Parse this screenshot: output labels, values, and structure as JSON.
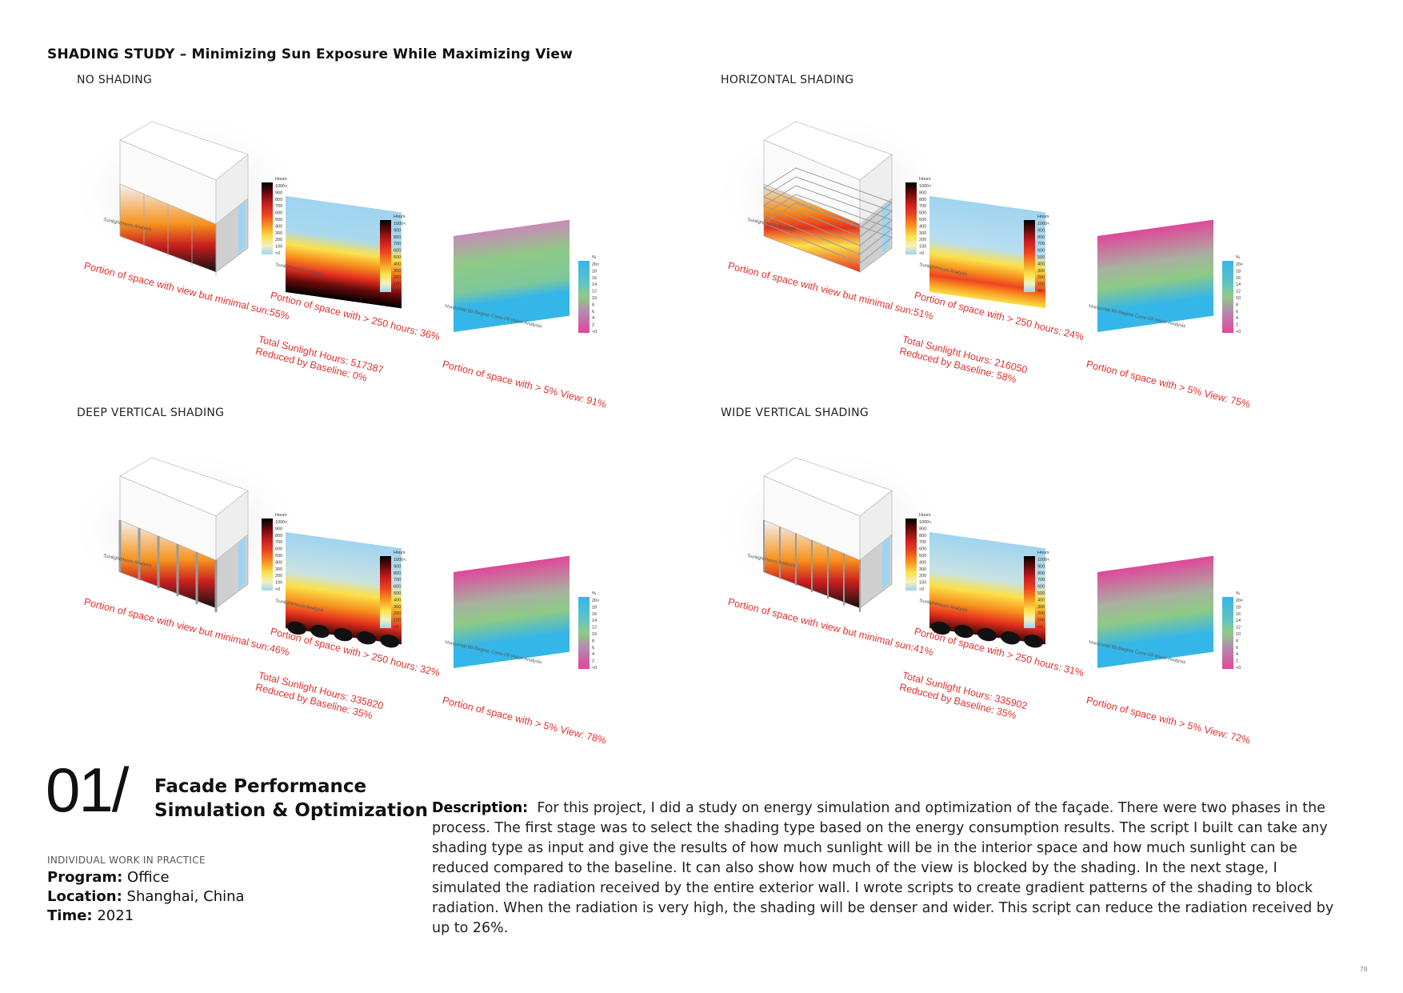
{
  "title": "SHADING STUDY – Minimizing Sun Exposure While Maximizing View",
  "legend": {
    "hours_title": "Hours",
    "hours_ticks": [
      "1000<",
      "900",
      "800",
      "700",
      "600",
      "500",
      "400",
      "300",
      "200",
      "100",
      "<0"
    ],
    "view_title": "%",
    "view_ticks": [
      "20<",
      "18",
      "16",
      "14",
      "12",
      "10",
      "8",
      "6",
      "4",
      "2",
      "<0"
    ]
  },
  "analysis_labels": {
    "sunlight": "SunlightHours Analysis",
    "view": "Horizontal 60-Degree Cone-Of-Vision Analysis"
  },
  "studies": [
    {
      "label": "NO SHADING",
      "view_minimal_sun": "Portion of space with view but minimal sun:55%",
      "over_250": "Portion of space with > 250 hours: 36%",
      "total_hours": "Total Sunlight Hours: 517387",
      "reduced": "Reduced by Baseline: 0%",
      "view_5": "Portion of space with > 5% View: 91%"
    },
    {
      "label": "HORIZONTAL SHADING",
      "view_minimal_sun": "Portion of space with view but minimal sun:51%",
      "over_250": "Portion of space with > 250 hours: 24%",
      "total_hours": "Total Sunlight Hours: 216050",
      "reduced": "Reduced by Baseline: 58%",
      "view_5": "Portion of space with > 5% View: 75%"
    },
    {
      "label": "DEEP VERTICAL SHADING",
      "view_minimal_sun": "Portion of space with view but minimal sun:46%",
      "over_250": "Portion of space with > 250 hours: 32%",
      "total_hours": "Total Sunlight Hours: 335820",
      "reduced": "Reduced by Baseline: 35%",
      "view_5": "Portion of space with > 5% View: 78%"
    },
    {
      "label": "WIDE VERTICAL SHADING",
      "view_minimal_sun": "Portion of space with view but minimal sun:41%",
      "over_250": "Portion of space with > 250 hours: 31%",
      "total_hours": "Total Sunlight Hours: 335902",
      "reduced": "Reduced by Baseline: 35%",
      "view_5": "Portion of space with > 5% View: 72%"
    }
  ],
  "project": {
    "number": "01/",
    "title_line1": "Facade Performance",
    "title_line2": "Simulation & Optimization",
    "subhead": "INDIVIDUAL WORK IN PRACTICE",
    "program_label": "Program:",
    "program": "Office",
    "location_label": "Location:",
    "location": "Shanghai, China",
    "time_label": "Time:",
    "time": "2021"
  },
  "description": {
    "label": "Description:",
    "text": "For this project, I did a study on energy simulation and optimization of the façade. There were two phases in the process. The first stage was to select the shading type based on the energy consumption results. The script I built can take any shading type as input and give the results of how much sunlight will be in the interior space and how much sunlight can be reduced compared to the baseline. It can also show how much of the view is blocked by the shading. In the next stage, I simulated the radiation received by the entire exterior wall. I wrote scripts to create gradient patterns of the shading to block radiation. When the radiation is very high, the shading will be denser and wider. This script can reduce the radiation received by up to 26%."
  },
  "page_number": "78",
  "colors": {
    "accent_red": "#e0302e",
    "sky_blue": "#9fd4f0",
    "view_cyan": "#35b6e8",
    "view_green": "#8fca86",
    "view_magenta": "#e0479a"
  }
}
